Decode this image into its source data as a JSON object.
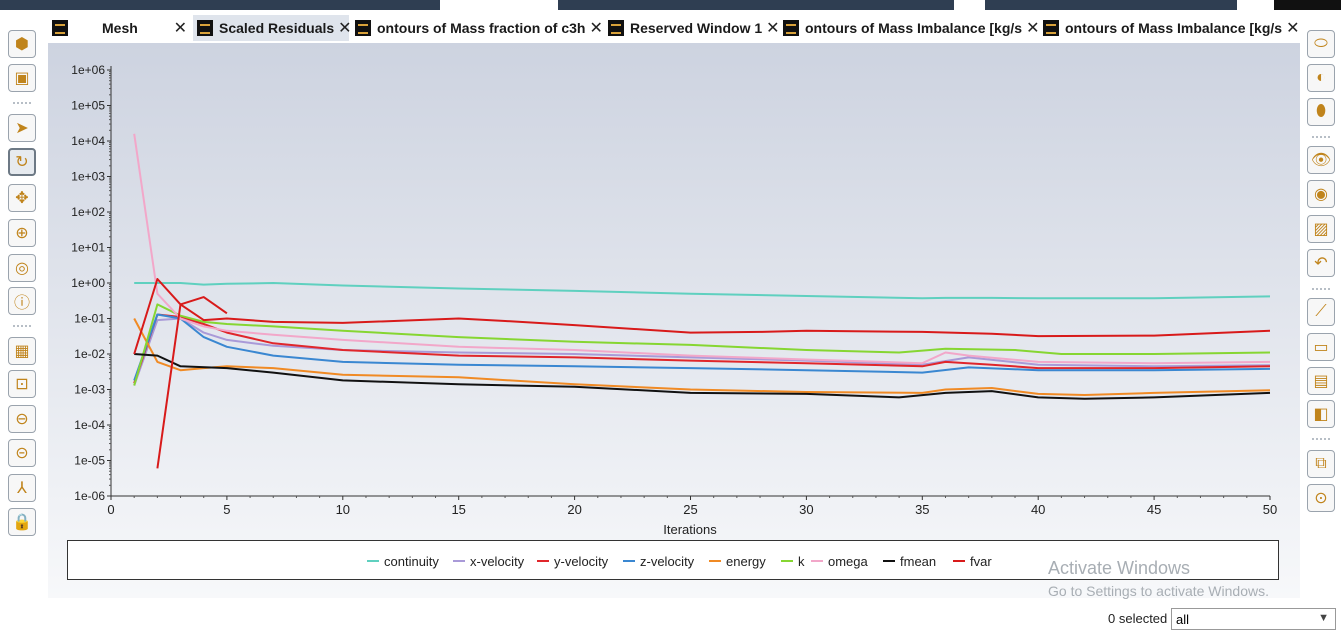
{
  "tabs": [
    {
      "label": "Mesh",
      "active": false
    },
    {
      "label": "Scaled Residuals",
      "active": true
    },
    {
      "label": "ontours of Mass fraction of c3h",
      "active": false
    },
    {
      "label": "Reserved Window 1",
      "active": false
    },
    {
      "label": "ontours of Mass Imbalance [kg/s",
      "active": false
    },
    {
      "label": "ontours of Mass Imbalance [kg/s",
      "active": false
    }
  ],
  "left_toolbar": [
    "fit-to-window-icon",
    "isometric-view-icon",
    "select-pointer-icon",
    "rotate-icon",
    "pan-icon",
    "zoom-in-out-icon",
    "zoom-to-area-icon",
    "info-icon",
    "mesh-display-icon",
    "zoom-box-icon",
    "zoom-out-icon",
    "zoom-previous-icon",
    "axes-icon",
    "lock-icon"
  ],
  "right_toolbar": [
    "surface-display-icon",
    "shaded-display-icon",
    "transparency-icon",
    "view-icon",
    "hide-icon",
    "window-icon",
    "undo-view-icon",
    "plot-icon",
    "toggle-icon",
    "annotate-icon",
    "column-icon",
    "copy-icon",
    "screenshot-icon"
  ],
  "chart_data": {
    "type": "line",
    "title": "",
    "xlabel": "Iterations",
    "ylabel": "",
    "xlim": [
      0,
      50
    ],
    "ylim_log10": [
      -6,
      6
    ],
    "x_ticks": [
      "0",
      "5",
      "10",
      "15",
      "20",
      "25",
      "30",
      "35",
      "40",
      "45",
      "50"
    ],
    "y_ticks": [
      "1e-06",
      "1e-05",
      "1e-04",
      "1e-03",
      "1e-02",
      "1e-01",
      "1e+00",
      "1e+01",
      "1e+02",
      "1e+03",
      "1e+04",
      "1e+05",
      "1e+06"
    ],
    "log_scale_y": true,
    "legend_position": "bottom",
    "series": [
      {
        "name": "continuity",
        "color": "#5fd0bf",
        "points": [
          [
            1,
            1.0
          ],
          [
            2,
            1.0
          ],
          [
            3,
            1.0
          ],
          [
            4,
            0.9
          ],
          [
            5,
            0.95
          ],
          [
            7,
            1.0
          ],
          [
            10,
            0.85
          ],
          [
            15,
            0.7
          ],
          [
            20,
            0.6
          ],
          [
            25,
            0.5
          ],
          [
            30,
            0.43
          ],
          [
            35,
            0.37
          ],
          [
            36,
            0.38
          ],
          [
            38,
            0.38
          ],
          [
            40,
            0.37
          ],
          [
            45,
            0.37
          ],
          [
            50,
            0.42
          ]
        ]
      },
      {
        "name": "x-velocity",
        "color": "#a99ad8",
        "points": [
          [
            1,
            0.0013
          ],
          [
            2,
            0.09
          ],
          [
            3,
            0.1
          ],
          [
            4,
            0.04
          ],
          [
            5,
            0.025
          ],
          [
            7,
            0.017
          ],
          [
            10,
            0.013
          ],
          [
            15,
            0.011
          ],
          [
            20,
            0.01
          ],
          [
            25,
            0.008
          ],
          [
            30,
            0.0065
          ],
          [
            35,
            0.005
          ],
          [
            37,
            0.008
          ],
          [
            40,
            0.005
          ],
          [
            45,
            0.0045
          ],
          [
            50,
            0.0048
          ]
        ]
      },
      {
        "name": "y-velocity",
        "color": "#e0262b",
        "points": [
          [
            1,
            0.0015
          ],
          [
            2,
            0.13
          ],
          [
            3,
            0.11
          ],
          [
            4,
            0.07
          ],
          [
            5,
            0.04
          ],
          [
            7,
            0.02
          ],
          [
            10,
            0.013
          ],
          [
            15,
            0.009
          ],
          [
            20,
            0.008
          ],
          [
            25,
            0.0065
          ],
          [
            30,
            0.0055
          ],
          [
            35,
            0.0045
          ],
          [
            36,
            0.006
          ],
          [
            38,
            0.005
          ],
          [
            40,
            0.004
          ],
          [
            45,
            0.004
          ],
          [
            50,
            0.0045
          ]
        ]
      },
      {
        "name": "z-velocity",
        "color": "#3a87d1",
        "points": [
          [
            1,
            0.0018
          ],
          [
            2,
            0.13
          ],
          [
            3,
            0.1
          ],
          [
            4,
            0.03
          ],
          [
            5,
            0.016
          ],
          [
            7,
            0.009
          ],
          [
            10,
            0.006
          ],
          [
            15,
            0.005
          ],
          [
            20,
            0.0045
          ],
          [
            25,
            0.004
          ],
          [
            30,
            0.0035
          ],
          [
            35,
            0.003
          ],
          [
            37,
            0.0042
          ],
          [
            40,
            0.0035
          ],
          [
            45,
            0.0035
          ],
          [
            50,
            0.0038
          ]
        ]
      },
      {
        "name": "energy",
        "color": "#f08a24",
        "points": [
          [
            1,
            0.1
          ],
          [
            2,
            0.006
          ],
          [
            3,
            0.0035
          ],
          [
            4,
            0.004
          ],
          [
            5,
            0.0045
          ],
          [
            7,
            0.004
          ],
          [
            10,
            0.0026
          ],
          [
            15,
            0.0022
          ],
          [
            20,
            0.0014
          ],
          [
            25,
            0.001
          ],
          [
            30,
            0.00085
          ],
          [
            35,
            0.0008
          ],
          [
            36,
            0.001
          ],
          [
            38,
            0.0011
          ],
          [
            40,
            0.00075
          ],
          [
            42,
            0.0007
          ],
          [
            45,
            0.0008
          ],
          [
            50,
            0.00095
          ]
        ]
      },
      {
        "name": "k",
        "color": "#86d632",
        "points": [
          [
            1,
            0.0013
          ],
          [
            2,
            0.25
          ],
          [
            3,
            0.12
          ],
          [
            4,
            0.08
          ],
          [
            5,
            0.07
          ],
          [
            7,
            0.06
          ],
          [
            10,
            0.045
          ],
          [
            15,
            0.03
          ],
          [
            20,
            0.022
          ],
          [
            25,
            0.018
          ],
          [
            30,
            0.013
          ],
          [
            34,
            0.011
          ],
          [
            36,
            0.014
          ],
          [
            39,
            0.013
          ],
          [
            41,
            0.01
          ],
          [
            45,
            0.01
          ],
          [
            50,
            0.011
          ]
        ]
      },
      {
        "name": "omega",
        "color": "#f2a7c9",
        "points": [
          [
            1,
            16000
          ],
          [
            2,
            0.5
          ],
          [
            3,
            0.1
          ],
          [
            4,
            0.06
          ],
          [
            5,
            0.045
          ],
          [
            7,
            0.035
          ],
          [
            10,
            0.025
          ],
          [
            15,
            0.016
          ],
          [
            20,
            0.013
          ],
          [
            25,
            0.009
          ],
          [
            30,
            0.007
          ],
          [
            35,
            0.0055
          ],
          [
            36,
            0.011
          ],
          [
            37,
            0.009
          ],
          [
            40,
            0.006
          ],
          [
            45,
            0.0055
          ],
          [
            50,
            0.006
          ]
        ]
      },
      {
        "name": "fmean",
        "color": "#111111",
        "points": [
          [
            1,
            0.01
          ],
          [
            2,
            0.009
          ],
          [
            3,
            0.0045
          ],
          [
            5,
            0.004
          ],
          [
            7,
            0.003
          ],
          [
            10,
            0.0018
          ],
          [
            15,
            0.0014
          ],
          [
            20,
            0.0012
          ],
          [
            25,
            0.0008
          ],
          [
            30,
            0.00075
          ],
          [
            34,
            0.0006
          ],
          [
            36,
            0.0008
          ],
          [
            38,
            0.0009
          ],
          [
            40,
            0.0006
          ],
          [
            42,
            0.00055
          ],
          [
            45,
            0.0006
          ],
          [
            50,
            0.0008
          ]
        ]
      },
      {
        "name": "fvar",
        "color": "#d81a1a",
        "points": [
          [
            1,
            0.01
          ],
          [
            2,
            1.3
          ],
          [
            3,
            0.25
          ],
          [
            4,
            0.09
          ],
          [
            5,
            0.1
          ],
          [
            7,
            0.08
          ],
          [
            10,
            0.075
          ],
          [
            15,
            0.1
          ],
          [
            17,
            0.085
          ],
          [
            20,
            0.065
          ],
          [
            25,
            0.04
          ],
          [
            28,
            0.042
          ],
          [
            30,
            0.045
          ],
          [
            35,
            0.042
          ],
          [
            38,
            0.037
          ],
          [
            40,
            0.032
          ],
          [
            45,
            0.033
          ],
          [
            50,
            0.045
          ]
        ],
        "extra": [
          [
            2,
            6e-06
          ],
          [
            3,
            0.25
          ],
          [
            4,
            0.4
          ],
          [
            5,
            0.14
          ]
        ]
      }
    ]
  },
  "watermark": {
    "line1": "Activate Windows",
    "line2": "Go to Settings to activate Windows."
  },
  "selection": {
    "count_label": "0 selected",
    "dropdown_value": "all"
  }
}
